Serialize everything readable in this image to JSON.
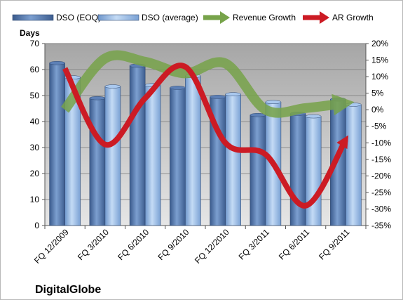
{
  "chart_data": {
    "type": "bar",
    "title": "",
    "brand": "DigitalGlobe",
    "y_left_label": "Days",
    "y_left_lim": [
      0,
      70
    ],
    "y_left_ticks": [
      "0",
      "10",
      "20",
      "30",
      "40",
      "50",
      "60",
      "70"
    ],
    "y_right_lim": [
      -35,
      20
    ],
    "y_right_ticks": [
      "-35%",
      "-30%",
      "-25%",
      "-20%",
      "-15%",
      "-10%",
      "-5%",
      "0%",
      "5%",
      "10%",
      "15%",
      "20%"
    ],
    "categories": [
      "FQ 12/2009",
      "FQ 3/2010",
      "FQ 6/2010",
      "FQ 9/2010",
      "FQ 12/2010",
      "FQ 3/2011",
      "FQ 6/2011",
      "FQ 9/2011"
    ],
    "series": [
      {
        "name": "DSO (EOQ)",
        "type": "bar",
        "axis": "left",
        "color": "#4a6fa5",
        "values": [
          62.5,
          49,
          61.5,
          53,
          49.5,
          42.5,
          43,
          48.5
        ]
      },
      {
        "name": "DSO (average)",
        "type": "bar",
        "axis": "left",
        "color": "#8fb4e0",
        "values": [
          57,
          53.5,
          54,
          57.5,
          50.5,
          47.5,
          42,
          46.5
        ]
      },
      {
        "name": "Revenue Growth",
        "type": "line",
        "axis": "right",
        "color": "#77a34a",
        "values": [
          0,
          15.5,
          14.5,
          11,
          14,
          0,
          0.5,
          2
        ]
      },
      {
        "name": "AR Growth",
        "type": "line",
        "axis": "right",
        "color": "#cc1b24",
        "values": [
          12.5,
          -10.5,
          3.5,
          13,
          -10,
          -13.5,
          -29,
          -9
        ]
      }
    ],
    "grid": true,
    "legend_position": "top"
  }
}
